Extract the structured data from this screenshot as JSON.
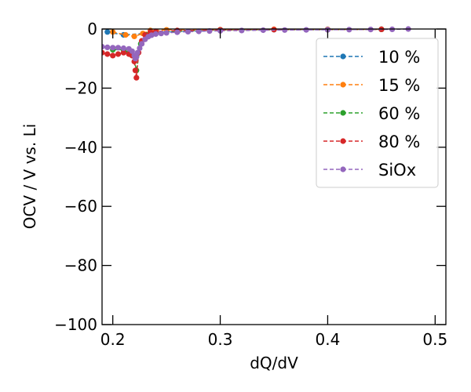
{
  "chart_data": {
    "type": "scatter",
    "title": "",
    "xlabel": "dQ/dV",
    "ylabel": "OCV / V vs. Li",
    "xlim": [
      0.19,
      0.51
    ],
    "ylim": [
      -100,
      0
    ],
    "xticks": [
      0.2,
      0.3,
      0.4,
      0.5
    ],
    "xtick_labels": [
      "0.2",
      "0.3",
      "0.4",
      "0.5"
    ],
    "yticks": [
      0,
      -20,
      -40,
      -60,
      -80,
      -100
    ],
    "ytick_labels": [
      "0",
      "−20",
      "−40",
      "−60",
      "−80",
      "−100"
    ],
    "grid": false,
    "legend_position": "top-right",
    "series": [
      {
        "name": "10 %",
        "color": "#1f77b4",
        "x": [
          0.195,
          0.21,
          0.25,
          0.3,
          0.35,
          0.4,
          0.45
        ],
        "y": [
          -1.0,
          -2.0,
          -1.0,
          -0.4,
          -0.2,
          -0.2,
          -0.1
        ]
      },
      {
        "name": "15 %",
        "color": "#ff7f0e",
        "x": [
          0.2,
          0.212,
          0.22,
          0.228,
          0.235,
          0.25,
          0.3,
          0.35,
          0.4,
          0.45
        ],
        "y": [
          -1.0,
          -2.0,
          -2.5,
          -1.5,
          -0.5,
          -0.3,
          -0.2,
          -0.1,
          -0.1,
          -0.1
        ]
      },
      {
        "name": "60 %",
        "color": "#2ca02c",
        "x": [
          0.2,
          0.21,
          0.215,
          0.219,
          0.222,
          0.226,
          0.232,
          0.24,
          0.3,
          0.4,
          0.45
        ],
        "y": [
          -7.0,
          -7.0,
          -8.0,
          -9.0,
          -14.0,
          -5.0,
          -2.0,
          -1.0,
          -0.3,
          -0.2,
          -0.1
        ]
      },
      {
        "name": "80 %",
        "color": "#d62728",
        "x": [
          0.19,
          0.195,
          0.2,
          0.205,
          0.21,
          0.215,
          0.218,
          0.22,
          0.221,
          0.222,
          0.224,
          0.227,
          0.23,
          0.235,
          0.24,
          0.26,
          0.3,
          0.35,
          0.4,
          0.45
        ],
        "y": [
          -8.0,
          -8.5,
          -9.0,
          -8.5,
          -8.0,
          -8.5,
          -9.0,
          -11.0,
          -14.0,
          -16.5,
          -8.0,
          -4.0,
          -2.0,
          -1.0,
          -0.8,
          -0.5,
          -0.3,
          -0.2,
          -0.2,
          -0.1
        ]
      },
      {
        "name": "SiOx",
        "color": "#9467bd",
        "x": [
          0.19,
          0.195,
          0.2,
          0.205,
          0.21,
          0.215,
          0.218,
          0.22,
          0.221,
          0.222,
          0.223,
          0.225,
          0.227,
          0.23,
          0.233,
          0.236,
          0.24,
          0.245,
          0.25,
          0.26,
          0.27,
          0.28,
          0.29,
          0.3,
          0.32,
          0.34,
          0.36,
          0.38,
          0.4,
          0.42,
          0.44,
          0.46,
          0.475
        ],
        "y": [
          -6.0,
          -6.2,
          -6.3,
          -6.3,
          -6.5,
          -6.7,
          -7.5,
          -9.0,
          -10.0,
          -9.5,
          -8.0,
          -6.5,
          -5.0,
          -3.5,
          -2.6,
          -2.1,
          -1.7,
          -1.5,
          -1.3,
          -1.1,
          -0.9,
          -0.8,
          -0.7,
          -0.6,
          -0.5,
          -0.4,
          -0.35,
          -0.3,
          -0.25,
          -0.2,
          -0.15,
          -0.1,
          0.0
        ]
      }
    ]
  }
}
